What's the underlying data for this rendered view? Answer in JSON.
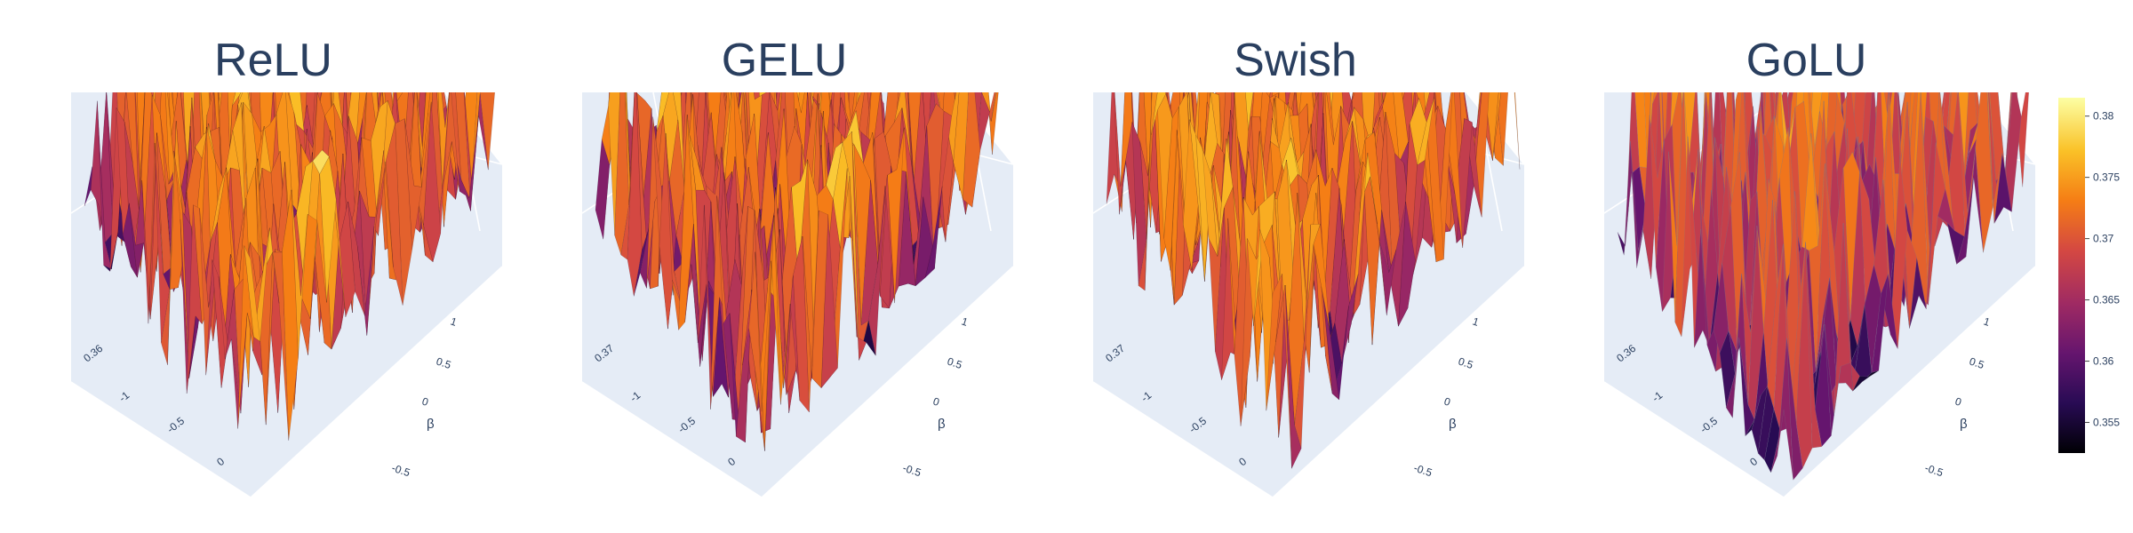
{
  "chart_data": [
    {
      "type": "surface3d",
      "title": "ReLU",
      "axes": {
        "x_ticks": [
          "0.36",
          "-1",
          "-0.5",
          "0"
        ],
        "y_ticks": [
          "1",
          "0.5",
          "0",
          "-0.5"
        ],
        "y_label": "β"
      },
      "z_range": [
        0.353,
        0.381
      ],
      "roughness": 0.55,
      "seed": 11
    },
    {
      "type": "surface3d",
      "title": "GELU",
      "axes": {
        "x_ticks": [
          "0.37",
          "-1",
          "-0.5",
          "0"
        ],
        "y_ticks": [
          "1",
          "0.5",
          "0",
          "-0.5"
        ],
        "y_label": "β"
      },
      "z_range": [
        0.353,
        0.381
      ],
      "roughness": 0.5,
      "seed": 23
    },
    {
      "type": "surface3d",
      "title": "Swish",
      "axes": {
        "x_ticks": [
          "0.37",
          "-1",
          "-0.5",
          "0"
        ],
        "y_ticks": [
          "1",
          "0.5",
          "0",
          "-0.5"
        ],
        "y_label": "β"
      },
      "z_range": [
        0.353,
        0.381
      ],
      "roughness": 0.55,
      "seed": 37
    },
    {
      "type": "surface3d",
      "title": "GoLU",
      "axes": {
        "x_ticks": [
          "0.36",
          "-1",
          "-0.5",
          "0"
        ],
        "y_ticks": [
          "1",
          "0.5",
          "0",
          "-0.5"
        ],
        "y_label": "β"
      },
      "z_range": [
        0.353,
        0.381
      ],
      "roughness": 0.25,
      "seed": 53
    }
  ],
  "colorbar": {
    "colorscale": "inferno",
    "range": [
      0.3525,
      0.3815
    ],
    "ticks": [
      0.355,
      0.36,
      0.365,
      0.37,
      0.375,
      0.38
    ],
    "tick_labels": [
      "0.355",
      "0.36",
      "0.365",
      "0.37",
      "0.375",
      "0.38"
    ]
  },
  "colors": {
    "scene_bg": "#e5ecf6",
    "grid": "#ffffff",
    "title_text": "#2a3f5f"
  }
}
